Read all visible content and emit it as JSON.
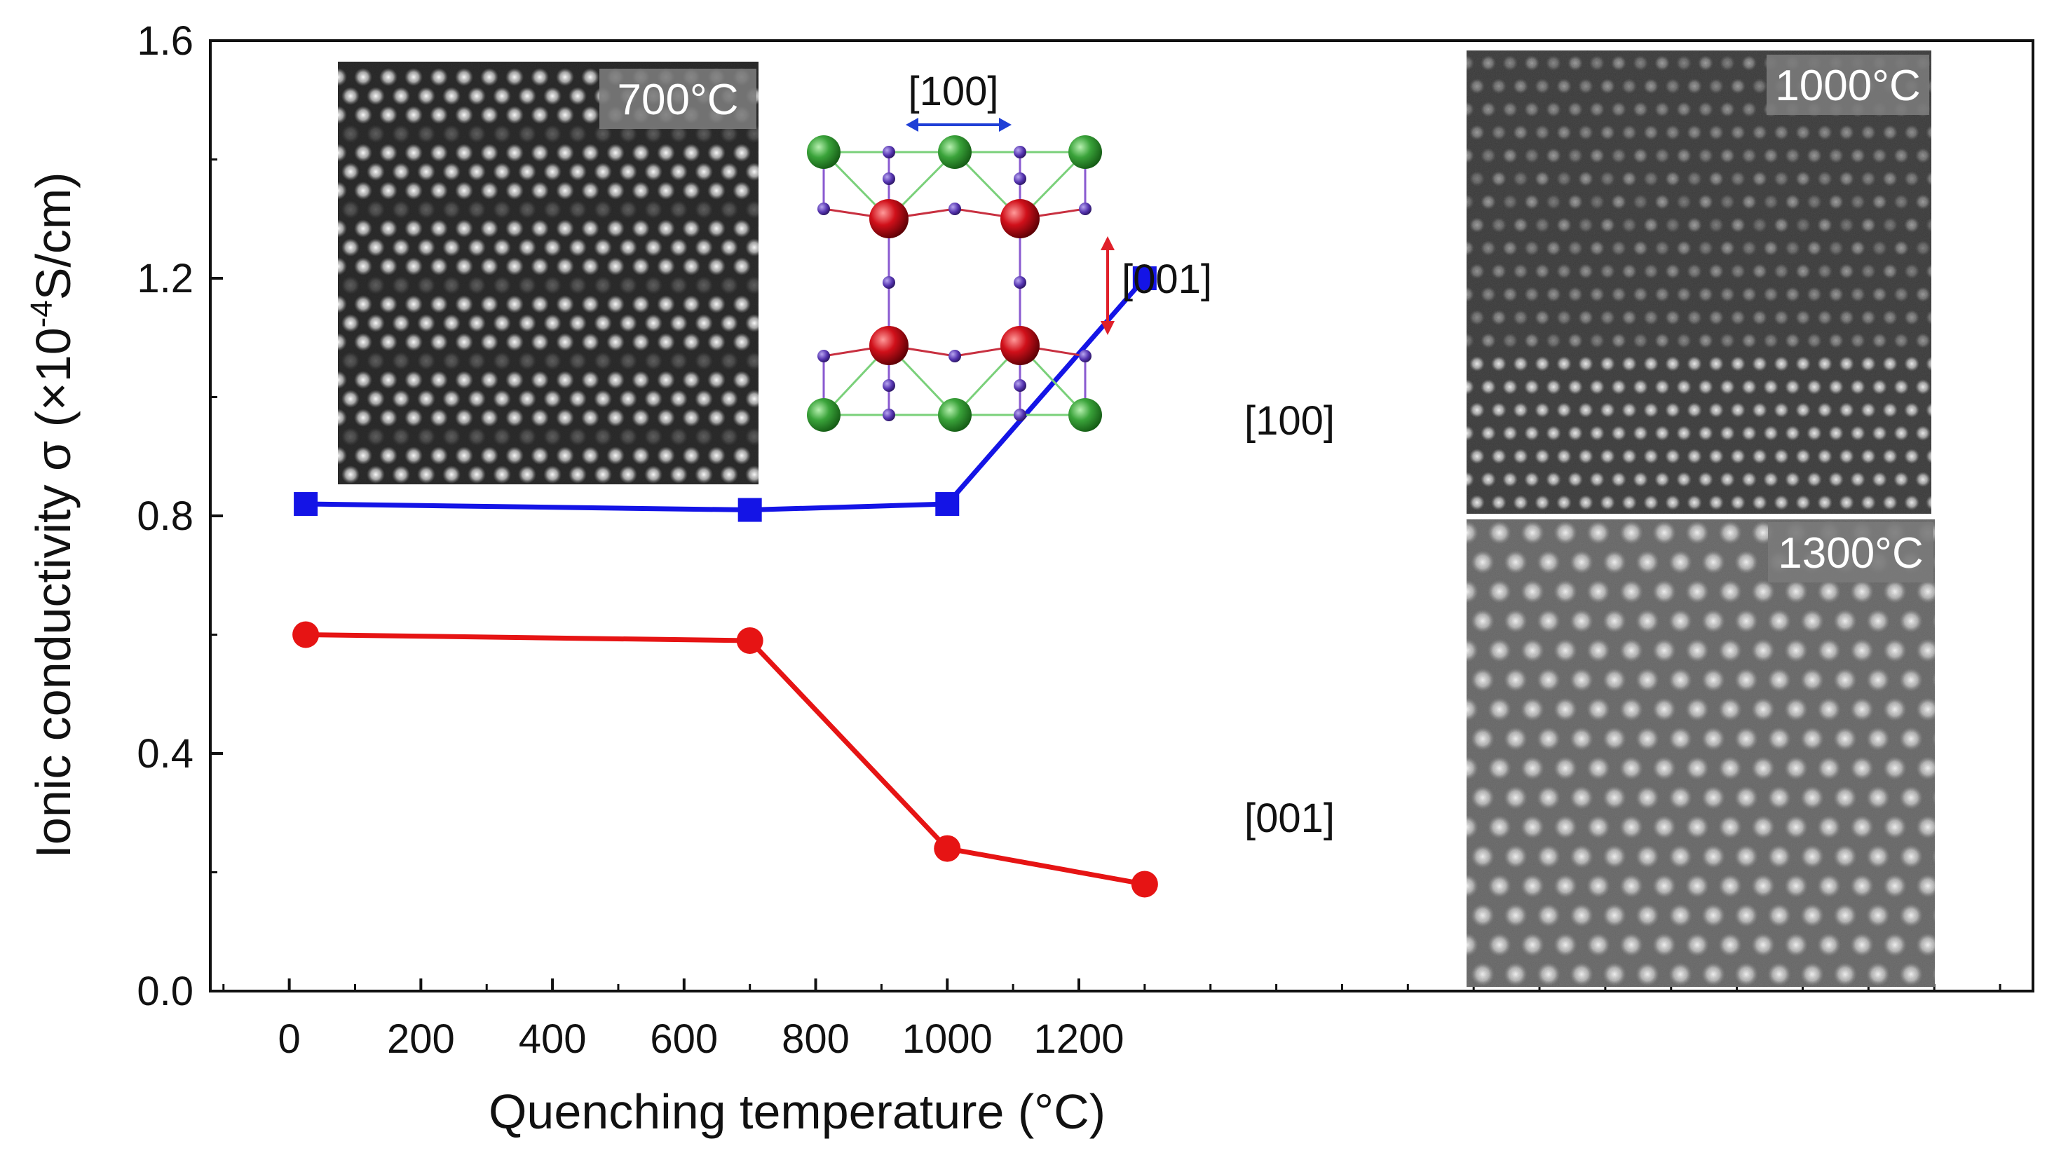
{
  "chart_data": {
    "type": "line",
    "xlabel": "Quenching temperature (°C)",
    "ylabel_main": "Ionic conductivity σ (×10",
    "ylabel_sup": "-4",
    "ylabel_unit": "S/cm)",
    "xlim": [
      -120,
      2650
    ],
    "ylim": [
      0.0,
      1.6
    ],
    "x_ticks": [
      0,
      200,
      400,
      600,
      800,
      1000,
      1200
    ],
    "x_tick_labels": [
      "0",
      "200",
      "400",
      "600",
      "800",
      "1000",
      "1200"
    ],
    "y_ticks": [
      0.0,
      0.4,
      0.8,
      1.2,
      1.6
    ],
    "y_tick_labels": [
      "0.0",
      "0.4",
      "0.8",
      "1.2",
      "1.6"
    ],
    "series": [
      {
        "name": "[100]",
        "color": "#1414e6",
        "marker": "square",
        "x": [
          25,
          700,
          1000,
          1300
        ],
        "values": [
          0.82,
          0.81,
          0.82,
          1.2
        ]
      },
      {
        "name": "[001]",
        "color": "#e61414",
        "marker": "circle",
        "x": [
          25,
          700,
          1000,
          1300
        ],
        "values": [
          0.6,
          0.59,
          0.24,
          0.18
        ]
      }
    ]
  },
  "insets": {
    "tem_700": {
      "label": "700°C"
    },
    "tem_1000": {
      "label": "1000°C"
    },
    "tem_1300": {
      "label": "1300°C"
    },
    "structure": {
      "label_100": "[100]",
      "label_001": "[001]",
      "arrow_100_color": "#1f3fd6",
      "arrow_001_color": "#e0202a",
      "atom_green": "#3a9a3a",
      "atom_red": "#c0101a",
      "atom_purple": "#5a3aa8"
    }
  }
}
